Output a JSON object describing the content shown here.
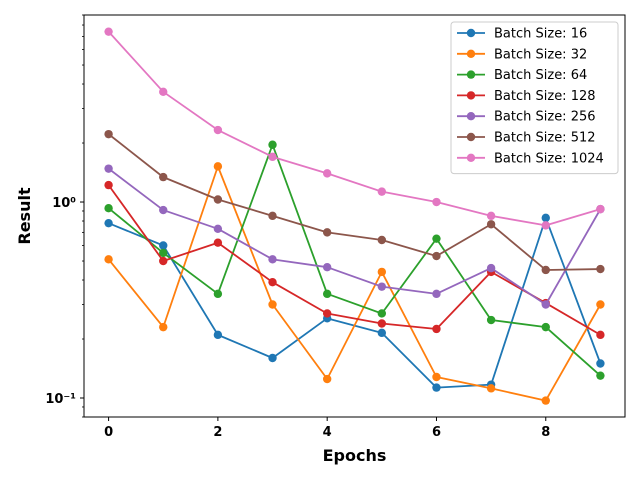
{
  "chart_data": {
    "type": "line",
    "title": "",
    "xlabel": "Epochs",
    "ylabel": "Result",
    "yscale": "log",
    "xlim": [
      -0.45,
      9.45
    ],
    "ylim": [
      0.08,
      9.0
    ],
    "x": [
      0,
      1,
      2,
      3,
      4,
      5,
      6,
      7,
      8,
      9
    ],
    "x_ticks": [
      0,
      2,
      4,
      6,
      8
    ],
    "x_tick_labels": [
      "0",
      "2",
      "4",
      "6",
      "8"
    ],
    "y_ticks": [
      0.1,
      1
    ],
    "y_tick_labels": [
      "10⁻¹",
      "10⁰"
    ],
    "grid": false,
    "legend_position": "top-right",
    "series": [
      {
        "name": "Batch Size: 16",
        "color": "#1f77b4",
        "values": [
          0.78,
          0.6,
          0.21,
          0.16,
          0.255,
          0.215,
          0.113,
          0.117,
          0.83,
          0.15
        ]
      },
      {
        "name": "Batch Size: 32",
        "color": "#ff7f0e",
        "values": [
          0.51,
          0.23,
          1.52,
          0.3,
          0.125,
          0.44,
          0.128,
          0.112,
          0.097,
          0.3
        ]
      },
      {
        "name": "Batch Size: 64",
        "color": "#2ca02c",
        "values": [
          0.93,
          0.55,
          0.34,
          1.96,
          0.34,
          0.27,
          0.65,
          0.25,
          0.23,
          0.13
        ]
      },
      {
        "name": "Batch Size: 128",
        "color": "#d62728",
        "values": [
          1.22,
          0.5,
          0.62,
          0.39,
          0.27,
          0.24,
          0.225,
          0.44,
          0.305,
          0.21
        ]
      },
      {
        "name": "Batch Size: 256",
        "color": "#9467bd",
        "values": [
          1.48,
          0.91,
          0.73,
          0.51,
          0.465,
          0.37,
          0.34,
          0.46,
          0.3,
          0.92
        ]
      },
      {
        "name": "Batch Size: 512",
        "color": "#8c564b",
        "values": [
          2.22,
          1.34,
          1.03,
          0.85,
          0.7,
          0.64,
          0.53,
          0.77,
          0.45,
          0.455
        ]
      },
      {
        "name": "Batch Size: 1024",
        "color": "#e377c2",
        "values": [
          7.4,
          3.65,
          2.33,
          1.7,
          1.4,
          1.13,
          1.0,
          0.85,
          0.76,
          0.92
        ]
      }
    ]
  }
}
